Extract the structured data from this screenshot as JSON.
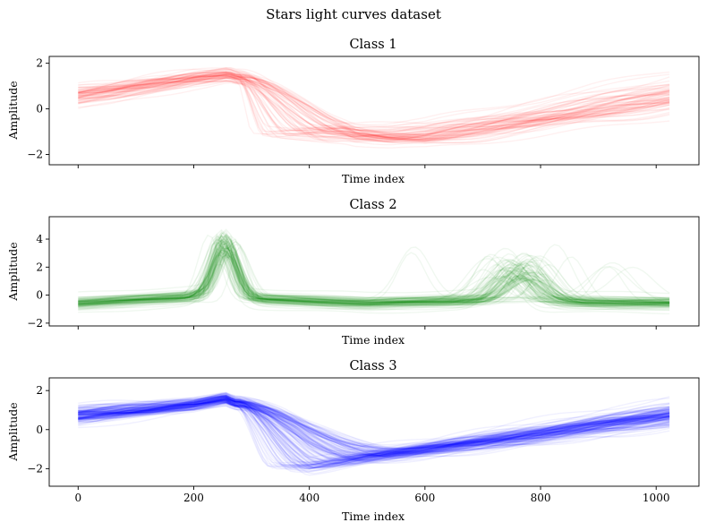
{
  "figure": {
    "suptitle": "Stars light curves dataset"
  },
  "chart_data": [
    {
      "type": "line",
      "title": "Class 1",
      "xlabel": "Time index",
      "ylabel": "Amplitude",
      "color": "#ff0000",
      "line_opacity": 0.06,
      "n_curves": 70,
      "xlim": [
        -50,
        1074
      ],
      "ylim": [
        -2.45,
        2.3
      ],
      "xticks": [
        0,
        200,
        400,
        600,
        800,
        1000
      ],
      "yticks": [
        -2,
        0,
        2
      ],
      "show_xtick_labels": false,
      "spread_peak": 0.22,
      "spread_tail": 0.35,
      "template": {
        "x": [
          0,
          60,
          120,
          200,
          260,
          300,
          360,
          420,
          480,
          540,
          600,
          700,
          800,
          900,
          1023
        ],
        "y": [
          0.6,
          0.8,
          1.05,
          1.35,
          1.5,
          1.2,
          -0.1,
          -0.8,
          -1.1,
          -1.2,
          -1.15,
          -0.8,
          -0.4,
          0.05,
          0.55
        ]
      },
      "transition": {
        "start": 275,
        "drop_min": 300,
        "drop_max": 520,
        "trough_x": 460,
        "trough_y": -1.4
      }
    },
    {
      "type": "line",
      "title": "Class 2",
      "xlabel": "Time index",
      "ylabel": "Amplitude",
      "color": "#008000",
      "line_opacity": 0.06,
      "n_curves": 110,
      "xlim": [
        -50,
        1074
      ],
      "ylim": [
        -2.2,
        5.6
      ],
      "xticks": [
        0,
        200,
        400,
        600,
        800,
        1000
      ],
      "yticks": [
        -2,
        0,
        2,
        4
      ],
      "show_xtick_labels": false,
      "baseline": {
        "x": [
          0,
          200,
          330,
          500,
          650,
          1023
        ],
        "y": [
          -0.55,
          -0.1,
          -0.3,
          -0.55,
          -0.4,
          -0.55
        ]
      },
      "peak1": {
        "center": 255,
        "height": 4.1,
        "width": 26
      },
      "peak2": {
        "center": 765,
        "height": 2.6,
        "width": 40,
        "outlier_min": 560,
        "outlier_max": 970
      }
    },
    {
      "type": "line",
      "title": "Class 3",
      "xlabel": "Time index",
      "ylabel": "Amplitude",
      "color": "#0000ff",
      "line_opacity": 0.06,
      "n_curves": 170,
      "xlim": [
        -50,
        1074
      ],
      "ylim": [
        -2.9,
        2.65
      ],
      "xticks": [
        0,
        200,
        400,
        600,
        800,
        1000
      ],
      "yticks": [
        -2,
        0,
        2
      ],
      "show_xtick_labels": true,
      "spread_peak": 0.2,
      "spread_tail": 0.3,
      "template": {
        "x": [
          0,
          60,
          120,
          200,
          255,
          290,
          330,
          370,
          400,
          450,
          500,
          600,
          700,
          800,
          900,
          1023
        ],
        "y": [
          0.75,
          0.9,
          1.05,
          1.3,
          1.6,
          1.1,
          -0.5,
          -1.5,
          -1.9,
          -1.65,
          -1.4,
          -1.0,
          -0.6,
          -0.2,
          0.25,
          0.75
        ]
      },
      "transition": {
        "start": 270,
        "drop_min": 330,
        "drop_max": 600,
        "trough_x": 400,
        "trough_y": -1.9
      }
    }
  ]
}
